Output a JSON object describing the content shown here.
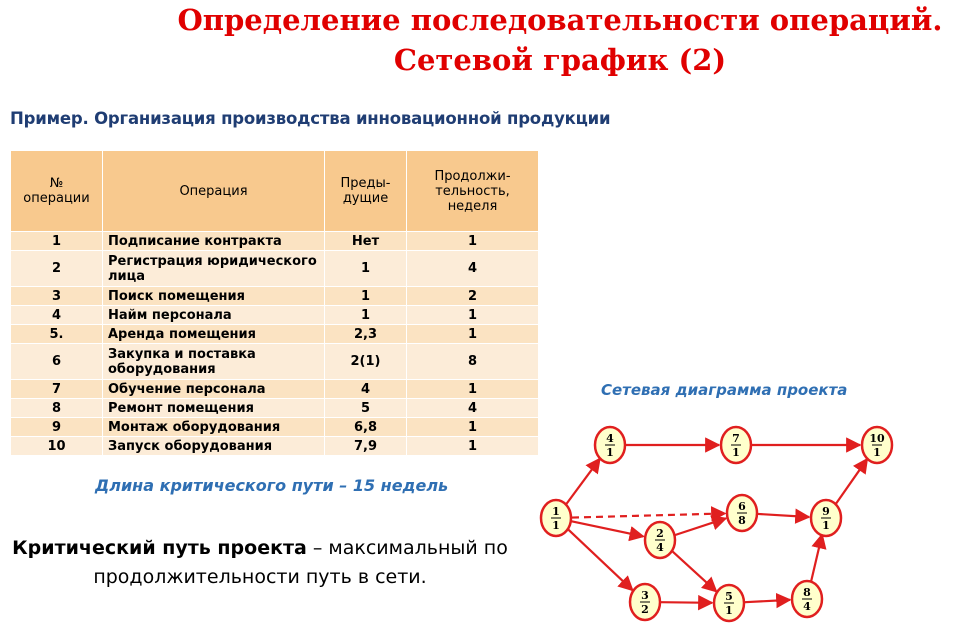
{
  "title_line1": "Определение последовательности операций.",
  "title_line2": "Сетевой график (2)",
  "subtitle": "Пример. Организация производства инновационной продукции",
  "table": {
    "headers": [
      "№ операции",
      "Операция",
      "Предыдущие",
      "Продолжительность, неделя"
    ],
    "header_display": [
      "№\nоперации",
      "Операция",
      "Преды-\nдущие",
      "Продолжи-\nтельность,\nнеделя"
    ],
    "rows": [
      {
        "num": "1",
        "op": "Подписание контракта",
        "prev": "Нет",
        "dur": "1"
      },
      {
        "num": "2",
        "op": "Регистрация юридического лица",
        "prev": "1",
        "dur": "4"
      },
      {
        "num": "3",
        "op": "Поиск помещения",
        "prev": "1",
        "dur": "2"
      },
      {
        "num": "4",
        "op": "Найм персонала",
        "prev": "1",
        "dur": "1"
      },
      {
        "num": "5.",
        "op": "Аренда помещения",
        "prev": "2,3",
        "dur": "1"
      },
      {
        "num": "6",
        "op": "Закупка и поставка оборудования",
        "prev": "2(1)",
        "dur": "8"
      },
      {
        "num": "7",
        "op": "Обучение персонала",
        "prev": "4",
        "dur": "1"
      },
      {
        "num": "8",
        "op": "Ремонт помещения",
        "prev": "5",
        "dur": "4"
      },
      {
        "num": "9",
        "op": "Монтаж оборудования",
        "prev": "6,8",
        "dur": "1"
      },
      {
        "num": "10",
        "op": "Запуск оборудования",
        "prev": "7,9",
        "dur": "1"
      }
    ]
  },
  "critical_length": "Длина критического пути – 15 недель",
  "definition": {
    "term": "Критический путь проекта",
    "rest": " – максимальный по продолжительности путь в сети."
  },
  "diagram": {
    "title": "Сетевая диаграмма проекта",
    "node_color": "#ffffcc",
    "edge_color": "#e01f1f",
    "nodes": [
      {
        "id": "1",
        "top": "1",
        "bottom": "1"
      },
      {
        "id": "4",
        "top": "4",
        "bottom": "1"
      },
      {
        "id": "7",
        "top": "7",
        "bottom": "1"
      },
      {
        "id": "10",
        "top": "10",
        "bottom": "1"
      },
      {
        "id": "2",
        "top": "2",
        "bottom": "4"
      },
      {
        "id": "6",
        "top": "6",
        "bottom": "8"
      },
      {
        "id": "9",
        "top": "9",
        "bottom": "1"
      },
      {
        "id": "3",
        "top": "3",
        "bottom": "2"
      },
      {
        "id": "5",
        "top": "5",
        "bottom": "1"
      },
      {
        "id": "8",
        "top": "8",
        "bottom": "4"
      }
    ],
    "edges": [
      {
        "from": "1",
        "to": "4",
        "dashed": false
      },
      {
        "from": "1",
        "to": "2",
        "dashed": false
      },
      {
        "from": "1",
        "to": "3",
        "dashed": false
      },
      {
        "from": "1",
        "to": "6",
        "dashed": true
      },
      {
        "from": "4",
        "to": "7",
        "dashed": false
      },
      {
        "from": "7",
        "to": "10",
        "dashed": false
      },
      {
        "from": "2",
        "to": "6",
        "dashed": false
      },
      {
        "from": "2",
        "to": "5",
        "dashed": false
      },
      {
        "from": "3",
        "to": "5",
        "dashed": false
      },
      {
        "from": "5",
        "to": "8",
        "dashed": false
      },
      {
        "from": "6",
        "to": "9",
        "dashed": false
      },
      {
        "from": "8",
        "to": "9",
        "dashed": false
      },
      {
        "from": "9",
        "to": "10",
        "dashed": false
      }
    ]
  }
}
